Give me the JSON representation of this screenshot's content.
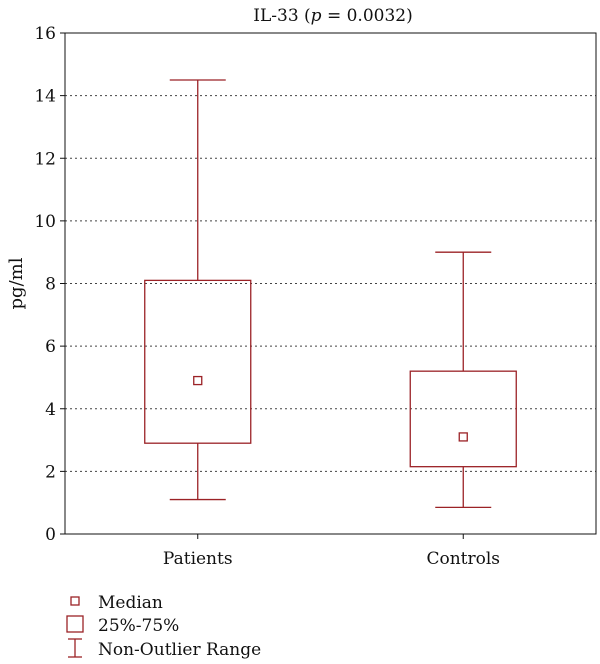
{
  "chart_data": {
    "type": "box",
    "title": {
      "prefix": "IL-33 (",
      "p_symbol": "p",
      "suffix": " = 0.0032)"
    },
    "ylabel": "pg/ml",
    "xlabel": "",
    "ylim": [
      0,
      16
    ],
    "yticks": [
      0,
      2,
      4,
      6,
      8,
      10,
      12,
      14,
      16
    ],
    "ytick_labels": [
      "0",
      "2",
      "4",
      "6",
      "8",
      "10",
      "12",
      "14",
      "16"
    ],
    "grid": "horizontal dotted",
    "categories": [
      "Patients",
      "Controls"
    ],
    "boxes": [
      {
        "category": "Patients",
        "whisker_low": 1.1,
        "q1": 2.9,
        "median": 4.9,
        "q3": 8.1,
        "whisker_high": 14.5
      },
      {
        "category": "Controls",
        "whisker_low": 0.85,
        "q1": 2.15,
        "median": 3.1,
        "q3": 5.2,
        "whisker_high": 9.0
      }
    ],
    "legend": {
      "placement": "bottom-left",
      "items": [
        "Median",
        "25%-75%",
        "Non-Outlier Range"
      ]
    },
    "color": "#9b2226"
  }
}
